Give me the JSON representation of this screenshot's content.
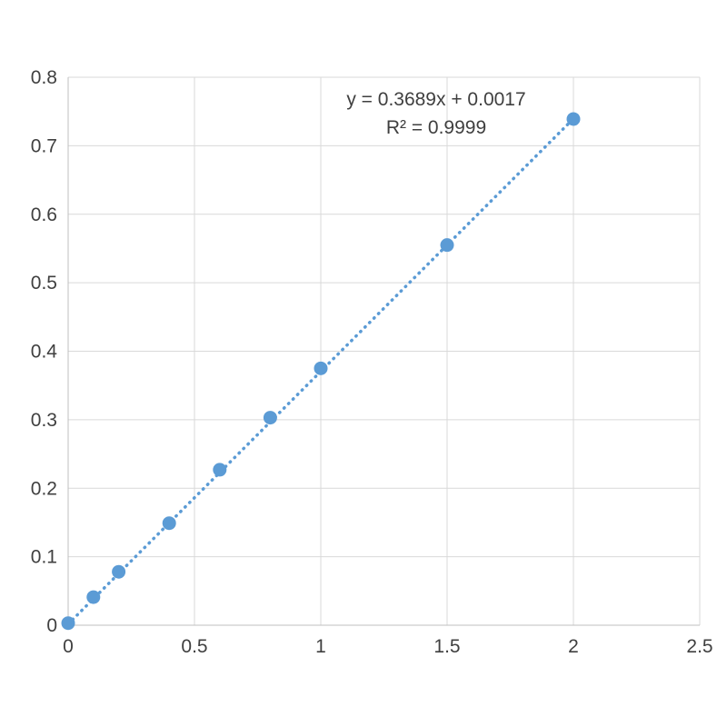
{
  "chart_data": {
    "type": "scatter",
    "title": "",
    "xlabel": "",
    "ylabel": "",
    "x": [
      0,
      0.1,
      0.2,
      0.4,
      0.6,
      0.8,
      1,
      1.5,
      2
    ],
    "y": [
      0.003,
      0.041,
      0.078,
      0.149,
      0.227,
      0.303,
      0.375,
      0.555,
      0.739
    ],
    "xlim": [
      0,
      2.5
    ],
    "ylim": [
      0,
      0.8
    ],
    "x_ticks": [
      0,
      0.5,
      1,
      1.5,
      2,
      2.5
    ],
    "y_ticks": [
      0,
      0.1,
      0.2,
      0.3,
      0.4,
      0.5,
      0.6,
      0.7,
      0.8
    ],
    "grid": true,
    "legend": "none",
    "trendline": {
      "slope": 0.3689,
      "intercept": 0.0017,
      "x_start": 0,
      "x_end": 2,
      "style": "dotted"
    },
    "annotation": {
      "equation": "y = 0.3689x + 0.0017",
      "r_squared": "R² = 0.9999"
    },
    "colors": {
      "marker": "#5B9BD5",
      "trendline": "#5B9BD5",
      "gridline": "#D9D9D9",
      "axis": "#BFBFBF",
      "tick_text": "#404040",
      "annotation_text": "#3F3F3F"
    }
  }
}
